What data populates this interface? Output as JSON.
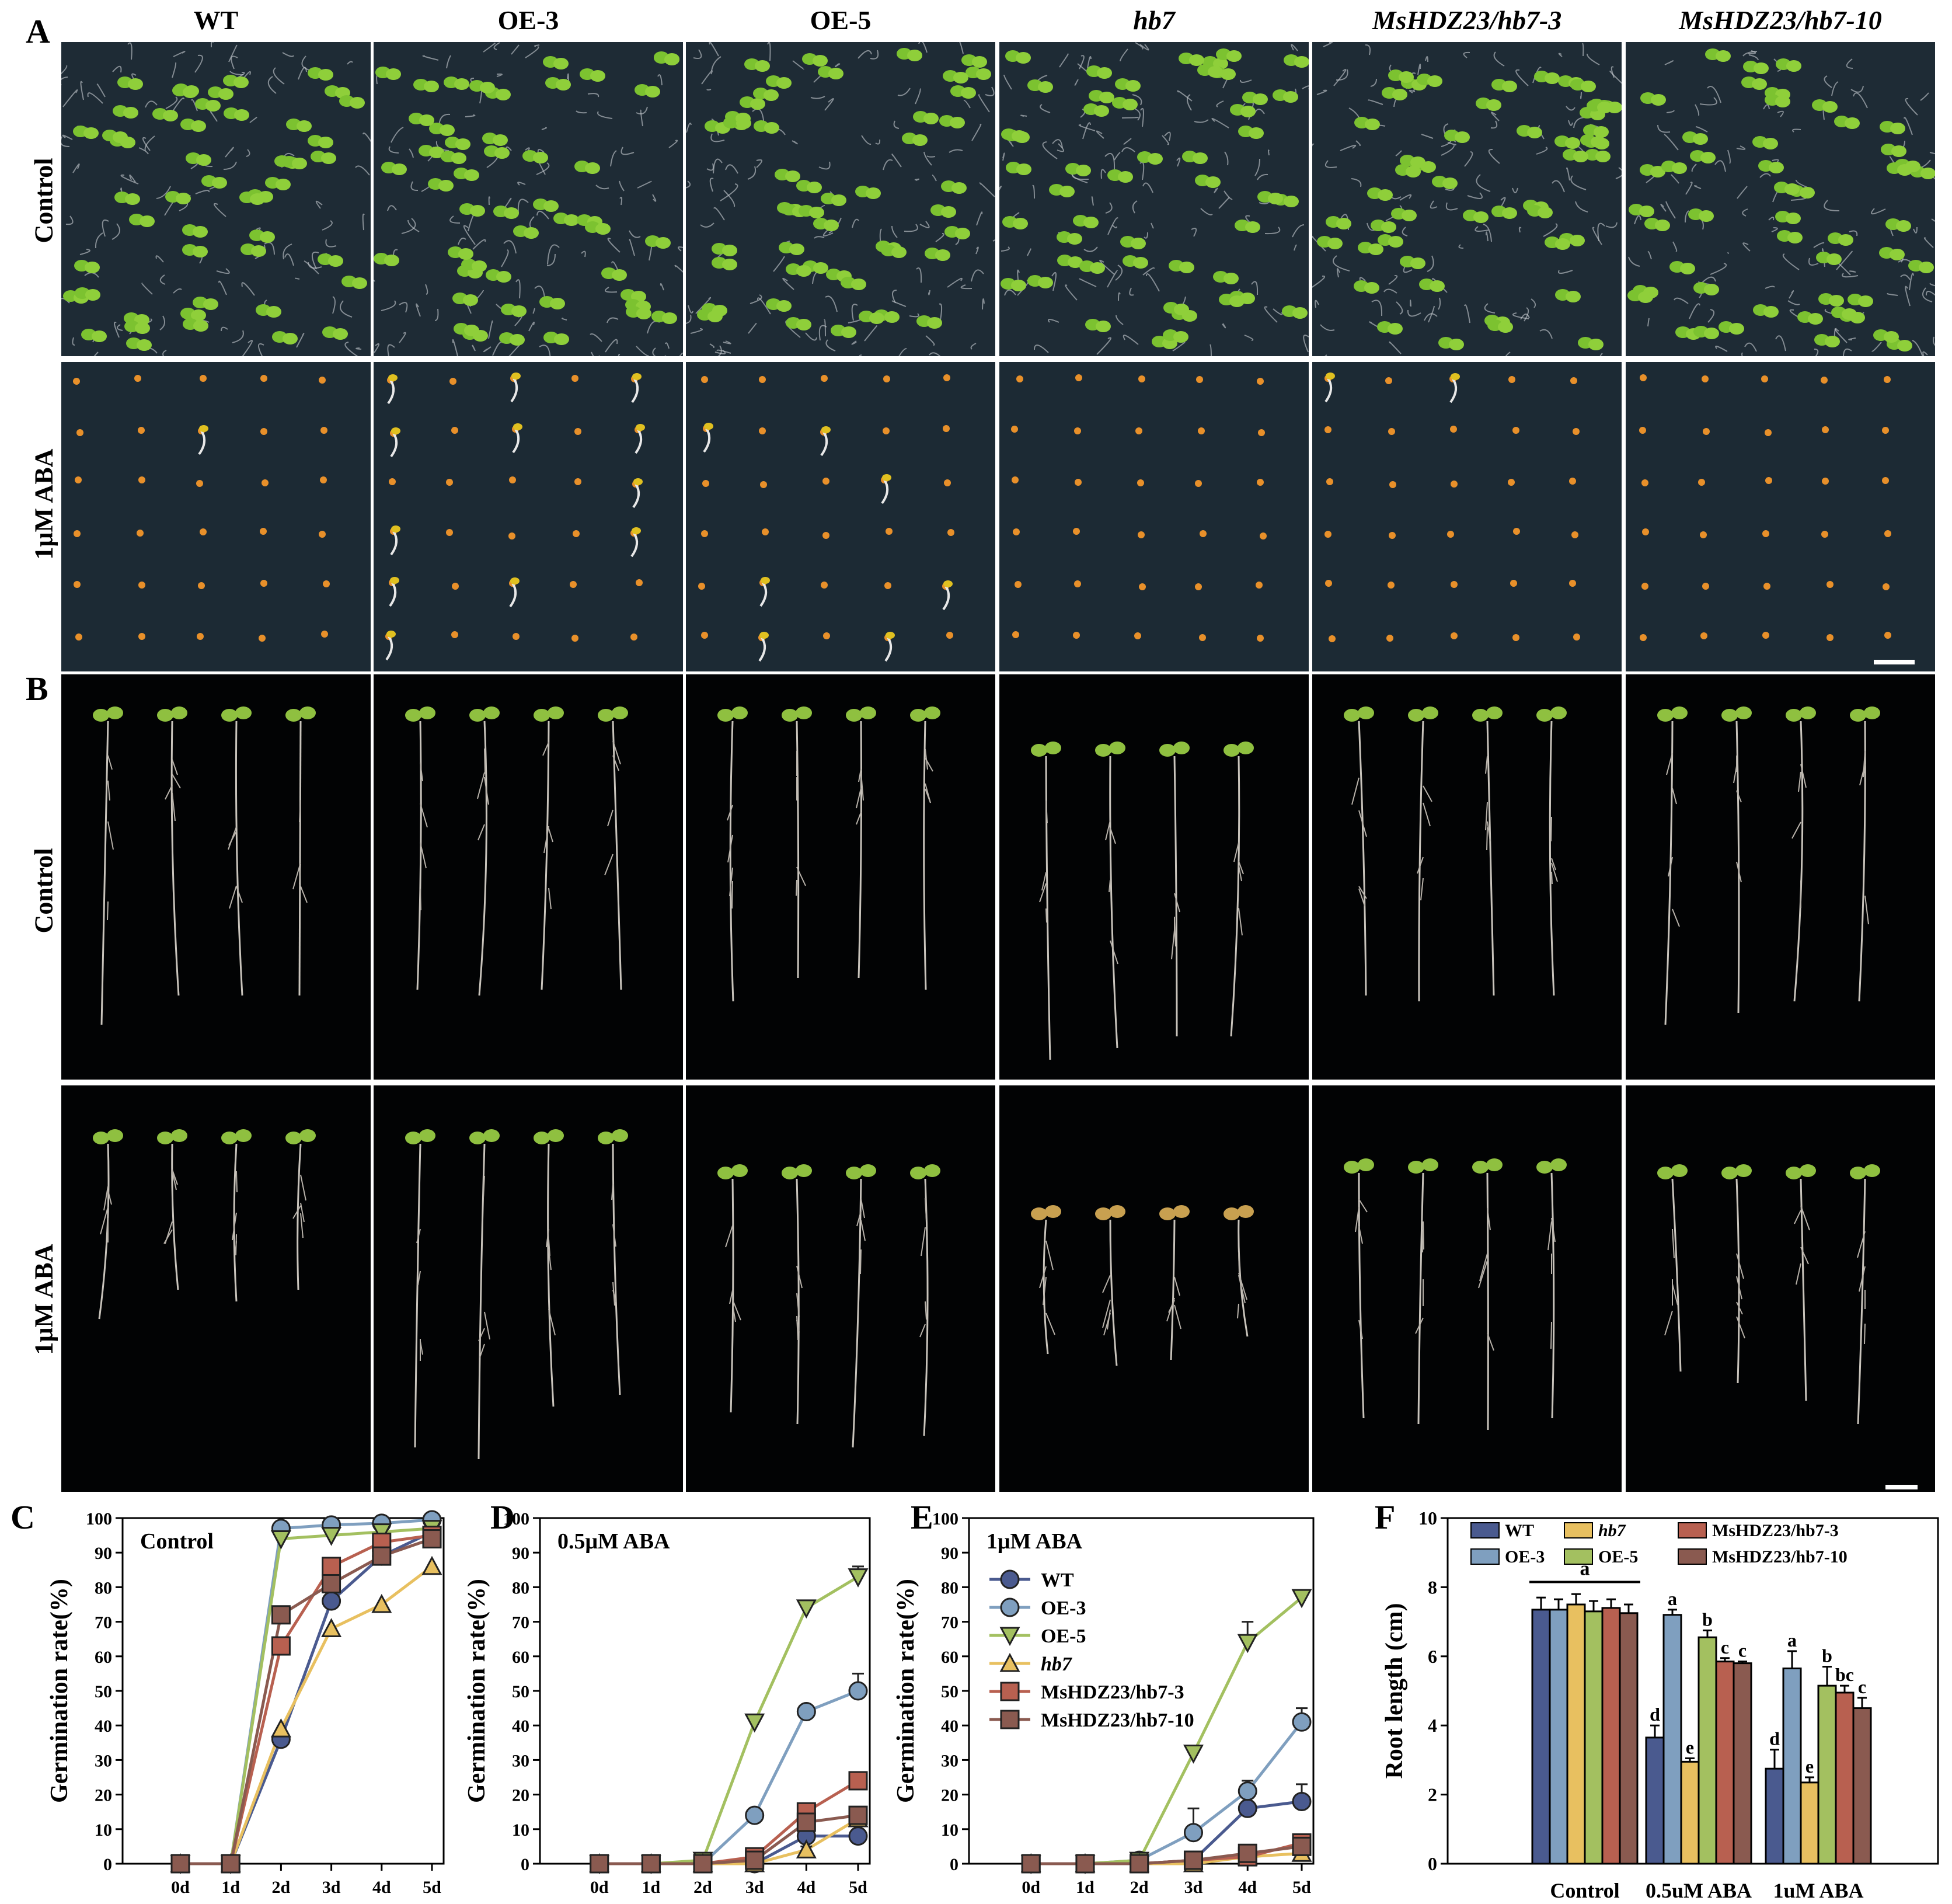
{
  "panel_a": {
    "letter": "A",
    "columns": [
      {
        "label": "WT",
        "italic": false
      },
      {
        "label": "OE-3",
        "italic": false
      },
      {
        "label": "OE-5",
        "italic": false
      },
      {
        "label": "hb7",
        "italic": true
      },
      {
        "label": "MsHDZ23/hb7-3",
        "italic": true
      },
      {
        "label": "MsHDZ23/hb7-10",
        "italic": true
      }
    ],
    "rows": [
      {
        "label": "Control"
      },
      {
        "label": "1μM ABA"
      }
    ]
  },
  "panel_b": {
    "letter": "B",
    "rows": [
      {
        "label": "Control"
      },
      {
        "label": "1μM ABA"
      }
    ]
  },
  "colors": {
    "WT": "#4a5a8f",
    "OE-3": "#7f9fbf",
    "OE-5": "#a3c060",
    "hb7": "#e8c060",
    "MsHDZ23/hb7-3": "#b86050",
    "MsHDZ23/hb7-10": "#8a5a50",
    "seedling": "#7cc230",
    "seed": "#e8902a"
  },
  "chart_data": [
    {
      "panel": "C",
      "type": "line",
      "title": "Control",
      "xlabel": "",
      "ylabel": "Germination rate(%)",
      "categories": [
        "0d",
        "1d",
        "2d",
        "3d",
        "4d",
        "5d"
      ],
      "yticks": [
        "0",
        "10",
        "20",
        "30",
        "40",
        "50",
        "60",
        "70",
        "80",
        "90",
        "100"
      ],
      "ylim": [
        0,
        100
      ],
      "series": [
        {
          "name": "WT",
          "marker": "circle",
          "values": [
            0,
            0,
            36,
            76,
            89,
            96
          ]
        },
        {
          "name": "OE-3",
          "marker": "circle",
          "values": [
            0,
            0,
            97,
            98,
            98.5,
            99.5
          ]
        },
        {
          "name": "OE-5",
          "marker": "triangle-down",
          "values": [
            0,
            0,
            94,
            95,
            96,
            97
          ]
        },
        {
          "name": "hb7",
          "marker": "triangle-up",
          "values": [
            0,
            0,
            39,
            68,
            75,
            86
          ]
        },
        {
          "name": "MsHDZ23/hb7-3",
          "marker": "square",
          "values": [
            0,
            0,
            63,
            86,
            93,
            95
          ]
        },
        {
          "name": "MsHDZ23/hb7-10",
          "marker": "square",
          "values": [
            0,
            0,
            72,
            81,
            89,
            94
          ]
        }
      ]
    },
    {
      "panel": "D",
      "type": "line",
      "title": "0.5μM ABA",
      "xlabel": "",
      "ylabel": "Germination rate(%)",
      "categories": [
        "0d",
        "1d",
        "2d",
        "3d",
        "4d",
        "5d"
      ],
      "yticks": [
        "0",
        "10",
        "20",
        "30",
        "40",
        "50",
        "60",
        "70",
        "80",
        "90",
        "100"
      ],
      "ylim": [
        0,
        100
      ],
      "series": [
        {
          "name": "WT",
          "marker": "circle",
          "values": [
            0,
            0,
            0,
            0,
            8,
            8
          ],
          "err": [
            0,
            0,
            0,
            0,
            1,
            1
          ]
        },
        {
          "name": "OE-3",
          "marker": "circle",
          "values": [
            0,
            0,
            0,
            14,
            44,
            50
          ],
          "err": [
            0,
            0,
            0,
            1,
            1,
            5
          ]
        },
        {
          "name": "OE-5",
          "marker": "triangle-down",
          "values": [
            0,
            0,
            1,
            41,
            74,
            83
          ],
          "err": [
            0,
            0,
            1,
            1,
            1,
            3
          ]
        },
        {
          "name": "hb7",
          "marker": "triangle-up",
          "values": [
            0,
            0,
            0,
            0,
            4,
            13
          ],
          "err": [
            0,
            0,
            0,
            0,
            1,
            1
          ]
        },
        {
          "name": "MsHDZ23/hb7-3",
          "marker": "square",
          "values": [
            0,
            0,
            0,
            2,
            15,
            24
          ],
          "err": [
            0,
            0,
            0,
            1,
            2,
            1
          ]
        },
        {
          "name": "MsHDZ23/hb7-10",
          "marker": "square",
          "values": [
            0,
            0,
            0,
            1,
            12,
            14
          ],
          "err": [
            0,
            0,
            0,
            1,
            1,
            1
          ]
        }
      ]
    },
    {
      "panel": "E",
      "type": "line",
      "title": "1μM ABA",
      "xlabel": "",
      "ylabel": "Germination rate(%)",
      "categories": [
        "0d",
        "1d",
        "2d",
        "3d",
        "4d",
        "5d"
      ],
      "yticks": [
        "0",
        "10",
        "20",
        "30",
        "40",
        "50",
        "60",
        "70",
        "80",
        "90",
        "100"
      ],
      "ylim": [
        0,
        100
      ],
      "legend": "top-left",
      "series": [
        {
          "name": "WT",
          "marker": "circle",
          "values": [
            0,
            0,
            0,
            1,
            16,
            18
          ],
          "err": [
            0,
            0,
            0,
            1,
            3,
            5
          ]
        },
        {
          "name": "OE-3",
          "marker": "circle",
          "values": [
            0,
            0,
            1,
            9,
            21,
            41
          ],
          "err": [
            0,
            0,
            0,
            7,
            3,
            4
          ]
        },
        {
          "name": "OE-5",
          "marker": "triangle-down",
          "values": [
            0,
            0,
            1,
            32,
            64,
            77
          ],
          "err": [
            0,
            0,
            1,
            2,
            6,
            2
          ]
        },
        {
          "name": "hb7",
          "marker": "triangle-up",
          "values": [
            0,
            0,
            0,
            0,
            2,
            3
          ],
          "err": [
            0,
            0,
            0,
            0,
            1,
            1
          ]
        },
        {
          "name": "MsHDZ23/hb7-3",
          "marker": "square",
          "values": [
            0,
            0,
            0,
            1,
            2,
            6
          ],
          "err": [
            0,
            0,
            0,
            1,
            1,
            2
          ]
        },
        {
          "name": "MsHDZ23/hb7-10",
          "marker": "square",
          "values": [
            0,
            0,
            0,
            1,
            3,
            5
          ],
          "err": [
            0,
            0,
            0,
            1,
            1,
            2
          ]
        }
      ]
    },
    {
      "panel": "F",
      "type": "bar",
      "xlabel": "",
      "ylabel": "Root length (cm)",
      "categories": [
        "Control",
        "0.5uM ABA",
        "1uM ABA"
      ],
      "yticks": [
        "0",
        "2",
        "4",
        "6",
        "8",
        "10"
      ],
      "ylim": [
        0,
        10
      ],
      "legend": "top",
      "control_group_letter": "a",
      "series": [
        {
          "name": "WT",
          "values": [
            7.35,
            3.65,
            2.75
          ],
          "err": [
            0.35,
            0.35,
            0.55
          ],
          "letters": [
            "",
            "d",
            "d"
          ]
        },
        {
          "name": "OE-3",
          "values": [
            7.35,
            7.2,
            5.65
          ],
          "err": [
            0.3,
            0.15,
            0.5
          ],
          "letters": [
            "",
            "a",
            "a"
          ]
        },
        {
          "name": "hb7",
          "values": [
            7.5,
            2.95,
            2.35
          ],
          "err": [
            0.3,
            0.1,
            0.15
          ],
          "letters": [
            "",
            "e",
            "e"
          ]
        },
        {
          "name": "OE-5",
          "values": [
            7.3,
            6.55,
            5.15
          ],
          "err": [
            0.3,
            0.2,
            0.55
          ],
          "letters": [
            "",
            "b",
            "b"
          ]
        },
        {
          "name": "MsHDZ23/hb7-3",
          "values": [
            7.4,
            5.85,
            4.95
          ],
          "err": [
            0.25,
            0.1,
            0.2
          ],
          "letters": [
            "",
            "c",
            "bc"
          ]
        },
        {
          "name": "MsHDZ23/hb7-10",
          "values": [
            7.25,
            5.8,
            4.5
          ],
          "err": [
            0.25,
            0.05,
            0.3
          ],
          "letters": [
            "",
            "c",
            "c"
          ]
        }
      ],
      "legend_labels": [
        "WT",
        "hb7",
        "MsHDZ23/hb7-3",
        "OE-3",
        "OE-5",
        "MsHDZ23/hb7-10"
      ]
    }
  ]
}
